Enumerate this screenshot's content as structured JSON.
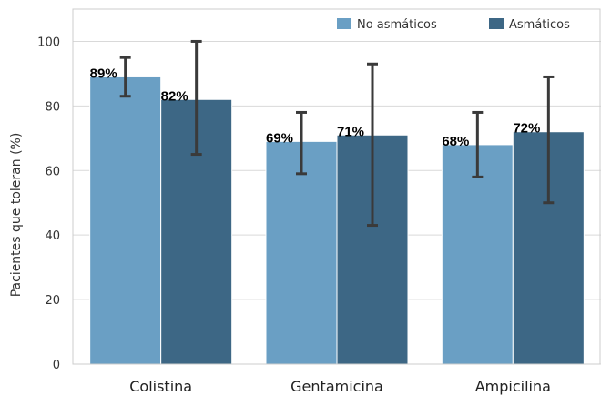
{
  "chart_data": {
    "type": "bar",
    "title": "",
    "xlabel": "",
    "ylabel": "Pacientes que toleran (%)",
    "ylim": [
      0,
      110
    ],
    "yticks": [
      0,
      20,
      40,
      60,
      80,
      100
    ],
    "grid": "horizontal",
    "legend_position": "top-right",
    "categories": [
      "Colistina",
      "Gentamicina",
      "Ampicilina"
    ],
    "series": [
      {
        "name": "No asmáticos",
        "color": "#6a9fc4",
        "values": [
          89,
          69,
          68
        ],
        "labels": [
          "89%",
          "69%",
          "68%"
        ],
        "err_low": [
          83,
          59,
          58
        ],
        "err_high": [
          95,
          78,
          78
        ]
      },
      {
        "name": "Asmáticos",
        "color": "#3d6785",
        "values": [
          82,
          71,
          72
        ],
        "labels": [
          "82%",
          "71%",
          "72%"
        ],
        "err_low": [
          65,
          43,
          50
        ],
        "err_high": [
          100,
          93,
          89
        ]
      }
    ]
  }
}
